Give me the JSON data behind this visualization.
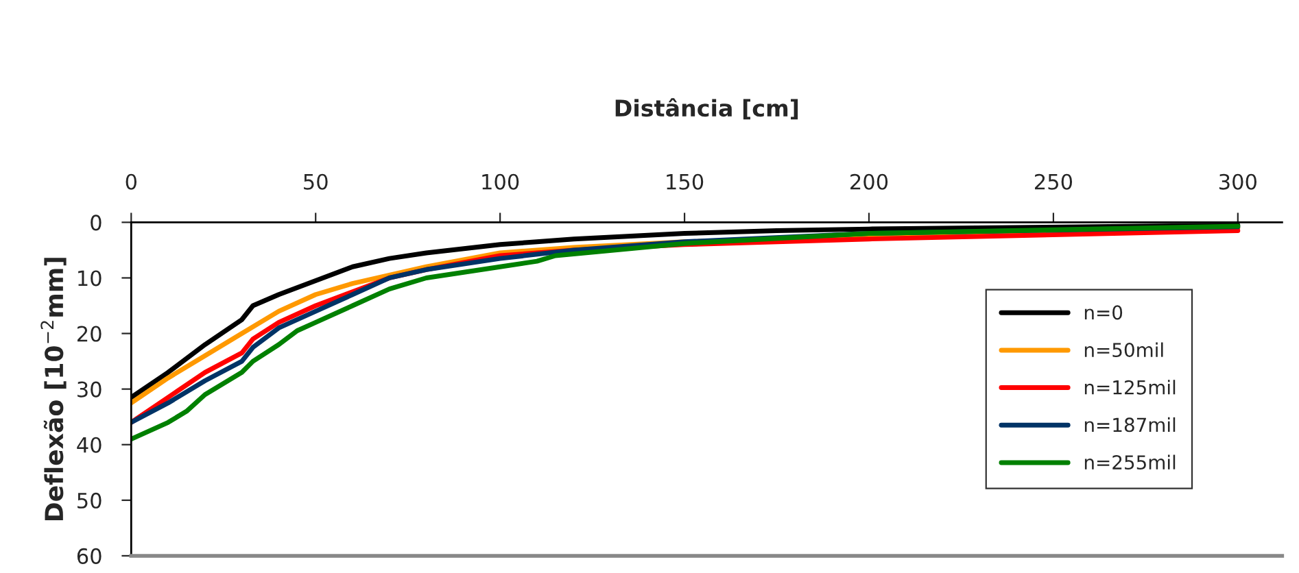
{
  "chart_data": {
    "type": "line",
    "xlabel": "Distância [cm]",
    "ylabel": "Deflexão [10$^{−2}$mm]",
    "xlim": [
      0,
      312
    ],
    "xticks": [
      0,
      50,
      100,
      150,
      200,
      250,
      300
    ],
    "ylim": [
      60,
      0
    ],
    "yticks": [
      0,
      10,
      20,
      30,
      40,
      50,
      60
    ],
    "grid": false,
    "legend": "right",
    "line_style": "solid",
    "marker": "none",
    "series": [
      {
        "name": "n=0",
        "color": "#000000",
        "x": [
          0,
          10,
          20,
          30,
          33,
          40,
          50,
          60,
          70,
          80,
          100,
          110,
          120,
          150,
          175,
          200,
          300
        ],
        "values": [
          31.5,
          27,
          22,
          17.5,
          15,
          13,
          10.5,
          8,
          6.5,
          5.5,
          4,
          3.5,
          3,
          2,
          1.5,
          1.2,
          0.5
        ]
      },
      {
        "name": "n=50mil",
        "color": "#ff9900",
        "x": [
          0,
          10,
          20,
          30,
          40,
          50,
          60,
          70,
          80,
          100,
          120,
          150,
          200,
          300
        ],
        "values": [
          32.5,
          28,
          24,
          20,
          16,
          13,
          11,
          9.5,
          8,
          5.5,
          4.5,
          3.5,
          2.5,
          1
        ]
      },
      {
        "name": "n=125mil",
        "color": "#ff0000",
        "x": [
          0,
          10,
          20,
          30,
          33,
          40,
          50,
          60,
          70,
          80,
          100,
          120,
          150,
          200,
          300
        ],
        "values": [
          36,
          31.5,
          27,
          23.5,
          21,
          18,
          15,
          12.5,
          10,
          8.5,
          6,
          5,
          4,
          3,
          1.5
        ]
      },
      {
        "name": "n=187mil",
        "color": "#003366",
        "x": [
          0,
          10,
          20,
          30,
          33,
          40,
          50,
          60,
          70,
          80,
          100,
          120,
          150,
          200,
          300
        ],
        "values": [
          36,
          32.5,
          28.5,
          25,
          22.5,
          19,
          16,
          13,
          10,
          8.5,
          6.5,
          5,
          3.5,
          2,
          0.8
        ]
      },
      {
        "name": "n=255mil",
        "color": "#008000",
        "x": [
          0,
          10,
          15,
          20,
          30,
          33,
          40,
          45,
          50,
          60,
          70,
          80,
          100,
          110,
          115,
          150,
          200,
          300
        ],
        "values": [
          39,
          36,
          34,
          31,
          27,
          25,
          22,
          19.5,
          18,
          15,
          12,
          10,
          8,
          7,
          6,
          3.8,
          2,
          0.7
        ]
      }
    ]
  }
}
